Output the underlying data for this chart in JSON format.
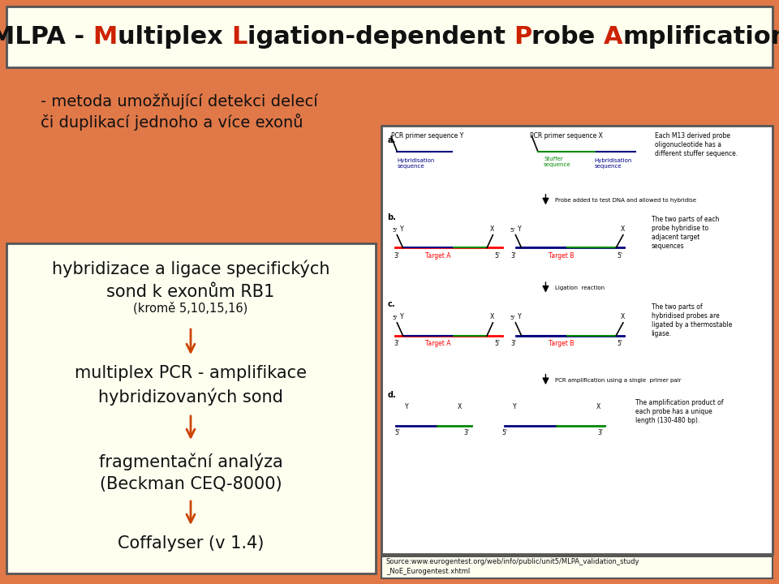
{
  "bg_outer": "#e07848",
  "bg_title": "#fffff0",
  "bg_left_box": "#fffff0",
  "bg_right_box": "#ffffff",
  "bg_source_box": "#fffff0",
  "border_color": "#555555",
  "text_dark": "#111111",
  "arrow_color": "#cc4400",
  "title_segments": [
    [
      "MLPA - ",
      "#111111"
    ],
    [
      "M",
      "#cc2200"
    ],
    [
      "ultiplex ",
      "#111111"
    ],
    [
      "L",
      "#cc2200"
    ],
    [
      "igation-dependent ",
      "#111111"
    ],
    [
      "P",
      "#cc2200"
    ],
    [
      "robe ",
      "#111111"
    ],
    [
      "A",
      "#cc2200"
    ],
    [
      "mplification",
      "#111111"
    ]
  ],
  "title_full": "MLPA - Multiplex Ligation-dependent Probe Amplification",
  "left_line1": "- metoda umožňují cí detekci delecí",
  "left_line2": "či duplikací jednoho a více exonů",
  "text1": "hybridizace a ligace specifických\nsond k exonům RB1",
  "text1b": "(kromě 5,10,15,16)",
  "text2": "multiplex PCR - amplifikace\nhybridizovaných sond",
  "text3": "fragmentační analýza\n(Beckman CEQ-8000)",
  "text4": "Coffalyser (v 1.4)",
  "source_text": "Source:www.eurogentest.org/web/info/public/unit5/MLPA_validation_study\n_NoE_Eurogentest.xhtml"
}
